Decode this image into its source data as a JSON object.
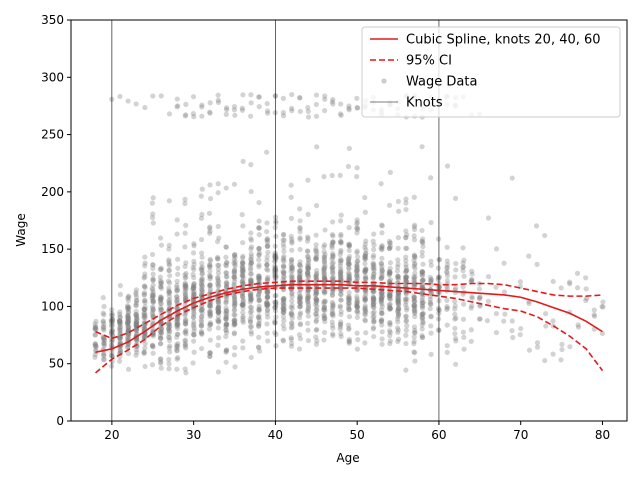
{
  "chart_data": {
    "type": "scatter",
    "xlabel": "Age",
    "ylabel": "Wage",
    "xlim": [
      15,
      83
    ],
    "ylim": [
      0,
      350
    ],
    "x_ticks": [
      20,
      30,
      40,
      50,
      60,
      70,
      80
    ],
    "y_ticks": [
      0,
      50,
      100,
      150,
      200,
      250,
      300,
      350
    ],
    "x_tick_labels": [
      "20",
      "30",
      "40",
      "50",
      "60",
      "70",
      "80"
    ],
    "y_tick_labels": [
      "0",
      "50",
      "100",
      "150",
      "200",
      "250",
      "300",
      "350"
    ],
    "grid": false,
    "legend_position": "top-right",
    "legend": [
      {
        "label": "Cubic Spline, knots 20, 40, 60",
        "style": "solid",
        "color": "#e31a1c"
      },
      {
        "label": "95% CI",
        "style": "dashed",
        "color": "#e31a1c"
      },
      {
        "label": "Wage Data",
        "style": "marker",
        "color": "#808080"
      },
      {
        "label": "Knots",
        "style": "thin-line",
        "color": "#000000"
      }
    ],
    "knots": [
      20,
      40,
      60
    ],
    "scatter_summary": {
      "ages": [
        18,
        80
      ],
      "center_curve": [
        [
          18,
          70
        ],
        [
          20,
          75
        ],
        [
          22,
          82
        ],
        [
          24,
          88
        ],
        [
          26,
          93
        ],
        [
          28,
          98
        ],
        [
          30,
          104
        ],
        [
          32,
          107
        ],
        [
          34,
          110
        ],
        [
          36,
          113
        ],
        [
          38,
          115
        ],
        [
          40,
          116
        ],
        [
          42,
          118
        ],
        [
          44,
          118
        ],
        [
          46,
          119
        ],
        [
          48,
          119
        ],
        [
          50,
          118
        ],
        [
          52,
          117
        ],
        [
          54,
          116
        ],
        [
          56,
          115
        ],
        [
          58,
          113
        ],
        [
          60,
          110
        ],
        [
          62,
          108
        ],
        [
          64,
          106
        ],
        [
          66,
          104
        ],
        [
          68,
          102
        ],
        [
          70,
          100
        ],
        [
          72,
          97
        ],
        [
          74,
          94
        ],
        [
          76,
          92
        ],
        [
          78,
          90
        ],
        [
          80,
          88
        ]
      ],
      "high_band_ages": [
        20,
        65
      ]
    },
    "series": [
      {
        "name": "Cubic Spline, knots 20, 40, 60",
        "x": [
          18,
          20,
          22,
          24,
          26,
          28,
          30,
          32,
          34,
          36,
          38,
          40,
          42,
          44,
          46,
          48,
          50,
          52,
          54,
          56,
          58,
          60,
          62,
          64,
          66,
          68,
          70,
          72,
          74,
          76,
          78,
          80
        ],
        "y": [
          60,
          63,
          69,
          78,
          88,
          96,
          103,
          108,
          112,
          115,
          117,
          118,
          119,
          119,
          119,
          119,
          118,
          118,
          117,
          116,
          115,
          114,
          113,
          112,
          111,
          110,
          108,
          104,
          99,
          94,
          87,
          78
        ]
      },
      {
        "name": "95% CI upper",
        "x": [
          18,
          20,
          22,
          24,
          26,
          28,
          30,
          32,
          34,
          36,
          38,
          40,
          42,
          44,
          46,
          48,
          50,
          52,
          54,
          56,
          58,
          60,
          62,
          64,
          66,
          68,
          70,
          72,
          74,
          76,
          78,
          80
        ],
        "y": [
          78,
          72,
          77,
          85,
          93,
          101,
          107,
          111,
          115,
          118,
          120,
          121,
          122,
          122,
          122,
          122,
          121,
          121,
          120,
          120,
          120,
          119,
          119,
          120,
          120,
          119,
          116,
          113,
          110,
          109,
          109,
          110
        ]
      },
      {
        "name": "95% CI lower",
        "x": [
          18,
          20,
          22,
          24,
          26,
          28,
          30,
          32,
          34,
          36,
          38,
          40,
          42,
          44,
          46,
          48,
          50,
          52,
          54,
          56,
          58,
          60,
          62,
          64,
          66,
          68,
          70,
          72,
          74,
          76,
          78,
          80
        ],
        "y": [
          42,
          54,
          62,
          71,
          83,
          92,
          99,
          105,
          110,
          113,
          115,
          116,
          116,
          116,
          116,
          116,
          116,
          115,
          114,
          113,
          111,
          109,
          107,
          104,
          101,
          98,
          96,
          91,
          83,
          74,
          63,
          44
        ]
      }
    ]
  }
}
